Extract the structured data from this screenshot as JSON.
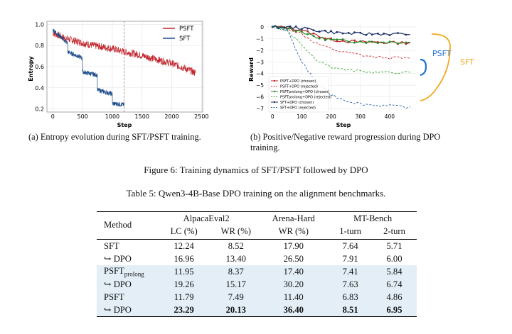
{
  "left_chart": {
    "caption": "(a) Entropy evolution during SFT/PSFT training.",
    "chart_data": {
      "type": "line",
      "xlabel": "Step",
      "ylabel": "Entropy",
      "xlim": [
        -100,
        2520
      ],
      "ylim": [
        0.17,
        1.03
      ],
      "xticks": [
        "0",
        "500",
        "1000",
        "1500",
        "2000",
        "2500"
      ],
      "yticks": [
        "0.2",
        "0.4",
        "0.6",
        "0.8",
        "1.0"
      ],
      "grid": true,
      "vline_x": 1200,
      "legend": "top-right",
      "series": [
        {
          "name": "PSFT",
          "color": "#c0262d",
          "x": [
            0,
            200,
            400,
            600,
            800,
            1000,
            1200,
            1400,
            1600,
            1800,
            2000,
            2200,
            2400
          ],
          "y": [
            0.92,
            0.87,
            0.84,
            0.81,
            0.79,
            0.77,
            0.74,
            0.72,
            0.69,
            0.66,
            0.63,
            0.59,
            0.54
          ]
        },
        {
          "name": "SFT",
          "color": "#1f4e8c",
          "x": [
            0,
            200,
            250,
            400,
            500,
            650,
            800,
            950,
            1000,
            1200
          ],
          "y": [
            0.95,
            0.85,
            0.72,
            0.7,
            0.54,
            0.53,
            0.37,
            0.35,
            0.25,
            0.24
          ]
        }
      ]
    }
  },
  "right_chart": {
    "caption": "(b) Positive/Negative reward progression during DPO training.",
    "chart_data": {
      "type": "line",
      "xlabel": "Step",
      "ylabel": "Reward",
      "xlim": [
        -20,
        490
      ],
      "ylim": [
        -7.3,
        0.3
      ],
      "xticks": [
        "0",
        "100",
        "200",
        "300",
        "400"
      ],
      "yticks": [
        "0",
        "−1",
        "−2",
        "−3",
        "−4",
        "−5",
        "−6",
        "−7"
      ],
      "grid": true,
      "legend": "lower-left",
      "series": [
        {
          "name": "PSFT+DPO (chosen)",
          "color": "#c0262d",
          "style": "solid",
          "x": [
            0,
            50,
            100,
            150,
            200,
            250,
            300,
            350,
            400,
            470
          ],
          "y": [
            0,
            -0.05,
            -0.3,
            -0.7,
            -1.1,
            -1.2,
            -1.3,
            -1.3,
            -1.35,
            -1.35
          ]
        },
        {
          "name": "PSFT+DPO (rejected)",
          "color": "#d2262d",
          "style": "dashed",
          "x": [
            0,
            50,
            100,
            150,
            200,
            250,
            300,
            350,
            400,
            470
          ],
          "y": [
            0,
            -0.1,
            -0.6,
            -1.4,
            -1.9,
            -2.2,
            -2.4,
            -2.6,
            -2.65,
            -2.7
          ]
        },
        {
          "name": "PSFTprolong+DPO (chosen)",
          "color": "#2a8a2a",
          "style": "solid",
          "x": [
            0,
            50,
            100,
            150,
            200,
            250,
            300,
            350,
            400,
            470
          ],
          "y": [
            0,
            -0.1,
            -0.4,
            -0.9,
            -1.1,
            -1.2,
            -1.25,
            -1.3,
            -1.3,
            -1.3
          ]
        },
        {
          "name": "PSFTprolong+DPO (rejected)",
          "color": "#3aa83a",
          "style": "dashed",
          "x": [
            0,
            50,
            100,
            150,
            200,
            250,
            300,
            350,
            400,
            470
          ],
          "y": [
            0,
            -0.3,
            -1.5,
            -2.8,
            -3.4,
            -3.7,
            -3.8,
            -3.9,
            -3.9,
            -3.9
          ]
        },
        {
          "name": "SFT+DPO (chosen)",
          "color": "#1a2f66",
          "style": "solid",
          "x": [
            0,
            50,
            100,
            150,
            200,
            250,
            300,
            350,
            400,
            470
          ],
          "y": [
            0,
            -0.02,
            -0.1,
            -0.3,
            -0.45,
            -0.55,
            -0.6,
            -0.6,
            -0.6,
            -0.65
          ]
        },
        {
          "name": "SFT+DPO (rejected)",
          "color": "#2f5fa8",
          "style": "dashed",
          "x": [
            0,
            50,
            100,
            150,
            200,
            250,
            300,
            350,
            400,
            470
          ],
          "y": [
            0,
            -0.3,
            -3.0,
            -4.8,
            -5.8,
            -6.3,
            -6.6,
            -6.7,
            -6.8,
            -6.85
          ]
        }
      ],
      "annotations": [
        {
          "text": "PSFT",
          "color": "#1e73d6"
        },
        {
          "text": "SFT",
          "color": "#f2a81e"
        }
      ]
    }
  },
  "figure_caption": "Figure 6: Training dynamics of SFT/PSFT followed by DPO",
  "table": {
    "caption": "Table 5: Qwen3-4B-Base DPO training on the alignment benchmarks.",
    "method_header": "Method",
    "groups": [
      "AlpacaEval2",
      "Arena-Hard",
      "MT-Bench"
    ],
    "subheaders": [
      "LC (%)",
      "WR (%)",
      "WR (%)",
      "1-turn",
      "2-turn"
    ],
    "rows": [
      {
        "method": "SFT",
        "values": [
          "12.24",
          "8.52",
          "17.90",
          "7.64",
          "5.71"
        ]
      },
      {
        "method": "↪ DPO",
        "values": [
          "16.96",
          "13.40",
          "26.50",
          "7.91",
          "6.00"
        ]
      },
      {
        "method": "PSFT",
        "method_sub": "prolong",
        "values": [
          "11.95",
          "8.37",
          "17.40",
          "7.41",
          "5.84"
        ]
      },
      {
        "method": "↪ DPO",
        "values": [
          "19.26",
          "15.17",
          "30.20",
          "7.63",
          "6.74"
        ]
      },
      {
        "method": "PSFT",
        "values": [
          "11.79",
          "7.49",
          "11.40",
          "6.83",
          "4.86"
        ]
      },
      {
        "method": "↪ DPO",
        "values": [
          "23.29",
          "20.13",
          "36.40",
          "8.51",
          "6.95"
        ]
      }
    ]
  }
}
